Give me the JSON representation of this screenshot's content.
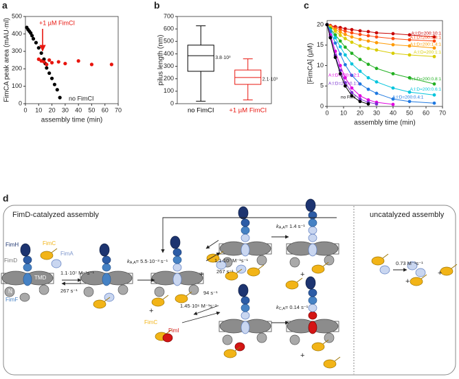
{
  "chart_data": [
    {
      "type": "scatter",
      "panel": "a",
      "xlabel": "assembly time (min)",
      "ylabel": "FimCA peak area (mAU·ml)",
      "xlim": [
        0,
        70
      ],
      "xticks": [
        0,
        10,
        20,
        30,
        40,
        50,
        60,
        70
      ],
      "ylim": [
        0,
        500
      ],
      "yticks": [
        0,
        100,
        200,
        300,
        400,
        500
      ],
      "series": [
        {
          "name": "no FimCI",
          "color": "#000000",
          "x": [
            1,
            2,
            3,
            4,
            5,
            6,
            8,
            10,
            12,
            14,
            15,
            16,
            18,
            20,
            22,
            24,
            26
          ],
          "values": [
            437,
            425,
            415,
            405,
            390,
            372,
            350,
            320,
            290,
            255,
            230,
            205,
            175,
            145,
            110,
            80,
            35
          ]
        },
        {
          "name": "+1 µM FimCI",
          "color": "#e8150e",
          "x": [
            10,
            12,
            14,
            16,
            18,
            20,
            25,
            30,
            40,
            50,
            65
          ],
          "values": [
            255,
            245,
            240,
            225,
            250,
            235,
            240,
            230,
            245,
            225,
            225
          ]
        }
      ]
    },
    {
      "type": "box",
      "panel": "b",
      "ylabel": "pilus length (nm)",
      "ylim": [
        0,
        700
      ],
      "yticks": [
        0,
        100,
        200,
        300,
        400,
        500,
        600,
        700
      ],
      "boxes": [
        {
          "name": "no FimCI",
          "color": "#000000",
          "min": 20,
          "q1": 260,
          "median": 385,
          "q3": 470,
          "max": 625,
          "n_label": "3.8·10³"
        },
        {
          "name": "+1 µM FimCI",
          "color": "#e8150e",
          "min": 30,
          "q1": 155,
          "median": 210,
          "q3": 270,
          "max": 360,
          "n_label": "2.1·10³"
        }
      ]
    },
    {
      "type": "line",
      "panel": "c",
      "xlabel": "assembly time (min)",
      "ylabel": "[FimCA] (µM)",
      "xlim": [
        0,
        70
      ],
      "xticks": [
        0,
        10,
        20,
        30,
        40,
        50,
        60,
        70
      ],
      "ylim": [
        0,
        21
      ],
      "yticks": [
        0,
        5,
        10,
        15,
        20
      ],
      "x": [
        0,
        2,
        5,
        8,
        11,
        15,
        20,
        25,
        30,
        40,
        50,
        65
      ],
      "series": [
        {
          "name": "A:I:D=200:10:1",
          "color": "#c80000",
          "values": [
            20,
            19.8,
            19.5,
            19.3,
            19.0,
            18.8,
            18.5,
            18.3,
            18.0,
            17.8,
            17.5,
            17.0
          ]
        },
        {
          "name": "A:I:D=200:3.3:1",
          "color": "#ff4a10",
          "values": [
            20,
            19.7,
            19.2,
            18.8,
            18.4,
            18.0,
            17.6,
            17.3,
            17.0,
            16.6,
            16.3,
            16.0
          ]
        },
        {
          "name": "A:I:D=200:1.4:1",
          "color": "#ff9a00",
          "values": [
            20,
            19.5,
            18.8,
            18.2,
            17.6,
            17.0,
            16.4,
            16.0,
            15.6,
            15.1,
            14.8,
            14.3
          ]
        },
        {
          "name": "A:I:D=200:1:1",
          "color": "#d8cc00",
          "values": [
            20,
            19.4,
            18.4,
            17.4,
            16.6,
            15.7,
            14.8,
            14.2,
            13.8,
            13.0,
            12.6,
            12.2
          ]
        },
        {
          "name": "A:I:D=200:0.8:1",
          "color": "#22b022",
          "values": [
            20,
            19.0,
            17.5,
            16.0,
            14.5,
            13.0,
            11.5,
            10.3,
            9.3,
            8.0,
            7.0,
            5.5
          ]
        },
        {
          "name": "A:I:D=200:0.6:1",
          "color": "#00c4dc",
          "values": [
            20,
            18.7,
            16.8,
            14.6,
            12.6,
            10.4,
            8.6,
            7.0,
            6.0,
            4.5,
            3.5,
            2.8
          ]
        },
        {
          "name": "A:I:D=200:0.4:1",
          "color": "#1e78e0",
          "values": [
            20,
            18.3,
            15.5,
            12.8,
            10.2,
            7.6,
            5.5,
            4.2,
            3.2,
            1.8,
            1.2,
            0.8
          ]
        },
        {
          "name": "A:I:D=200:0.2:1",
          "color": "#e000e0",
          "values": [
            20,
            17.5,
            13.5,
            10.0,
            7.0,
            4.5,
            2.6,
            1.6,
            1.0,
            0.5,
            null,
            null
          ]
        },
        {
          "name": "A:I:D=200:0.1:1",
          "color": "#7a2fd0",
          "values": [
            20,
            17.0,
            12.5,
            8.8,
            5.8,
            3.4,
            1.8,
            1.0,
            0.6,
            null,
            null,
            null
          ]
        },
        {
          "name": "no FimI",
          "color": "#000000",
          "values": [
            20,
            16.8,
            12.0,
            8.0,
            5.0,
            2.6,
            1.2,
            0.6,
            null,
            null,
            null,
            null
          ]
        }
      ]
    }
  ],
  "diagram": {
    "panel": "d",
    "title_catalyzed": "FimD-catalyzed assembly",
    "title_uncatalyzed": "uncatalyzed assembly",
    "labels": [
      "FimH",
      "FimC",
      "FimA",
      "FimD",
      "FimF",
      "TMD",
      "N",
      "C",
      "FimC",
      "FimI"
    ],
    "rates": [
      "1.1·10⁷ M⁻¹s⁻¹",
      "267 s⁻¹",
      "1.1·10⁷ M⁻¹s⁻¹",
      "267 s⁻¹",
      "94 s⁻¹",
      "1.45·10⁶ M⁻¹s⁻¹",
      "0.73 M⁻¹s⁻¹"
    ],
    "k_rates": [
      {
        "k": "k",
        "sub": "A,A",
        "value": "= 5.5·10⁻³ s⁻¹"
      },
      {
        "k": "k",
        "sub": "A,A",
        "value": "= 1.4 s⁻¹"
      },
      {
        "k": "k",
        "sub": "C,A",
        "value": "= 0.14 s⁻¹"
      }
    ],
    "plus": "+"
  }
}
